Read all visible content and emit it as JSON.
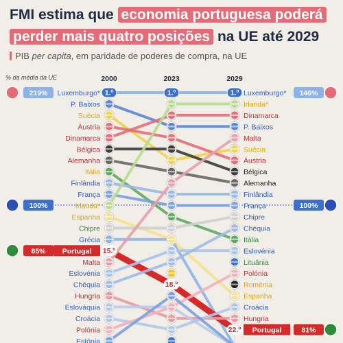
{
  "header": {
    "title_line1_pre": "FMI estima que",
    "title_line1_hl": "economia portuguesa poderá",
    "title_line2_hl": "perder mais quatro posições",
    "title_line2_post": "na UE até 2029",
    "subtitle_pre": "PIB ",
    "subtitle_italic": "per capita",
    "subtitle_post": ", em paridade de poderes de compra, na UE",
    "axis_note": "% da média da UE"
  },
  "colors": {
    "portugal": "#d42a2a",
    "highlight": "#e46b78",
    "navy": "#1f2a44",
    "blue_label": "#2f5ec4",
    "yellow_label": "#e3a600"
  },
  "chart_data": {
    "type": "slope",
    "columns": [
      "2000",
      "2023",
      "2029"
    ],
    "rank_badges": {
      "first": "1.º",
      "portugal_2000": "15.º",
      "portugal_2023": "18.º",
      "portugal_2029": "22.º"
    },
    "side_badges": {
      "lux_2000": "219%",
      "lux_2029": "146%",
      "eu_2000": "100%",
      "eu_2029": "100%",
      "pt_2000": "85%",
      "pt_2029": "81%"
    },
    "left_countries": [
      "Luxemburgo*",
      "P. Baixos",
      "Suécia",
      "Áustria",
      "Dinamarca",
      "Bélgica",
      "Alemanha",
      "Itália",
      "Finlândia",
      "França",
      "Irlanda*",
      "Espanha",
      "Chipre",
      "Grécia",
      "Portugal",
      "Malta",
      "Eslovénia",
      "Chéquia",
      "Hungria",
      "Eslováquia",
      "Croácia",
      "Polónia",
      "Estónia"
    ],
    "right_countries": [
      "Luxemburgo*",
      "Irlanda*",
      "Dinamarca",
      "P. Baixos",
      "Malta",
      "Suécia",
      "Áustria",
      "Bélgica",
      "Alemanha",
      "Finlândia",
      "França",
      "Chipre",
      "Chéquia",
      "Itália",
      "Eslovénia",
      "Lituânia",
      "Polónia",
      "Roménia",
      "Espanha",
      "Croácia",
      "Hungria",
      "Portugal"
    ]
  }
}
